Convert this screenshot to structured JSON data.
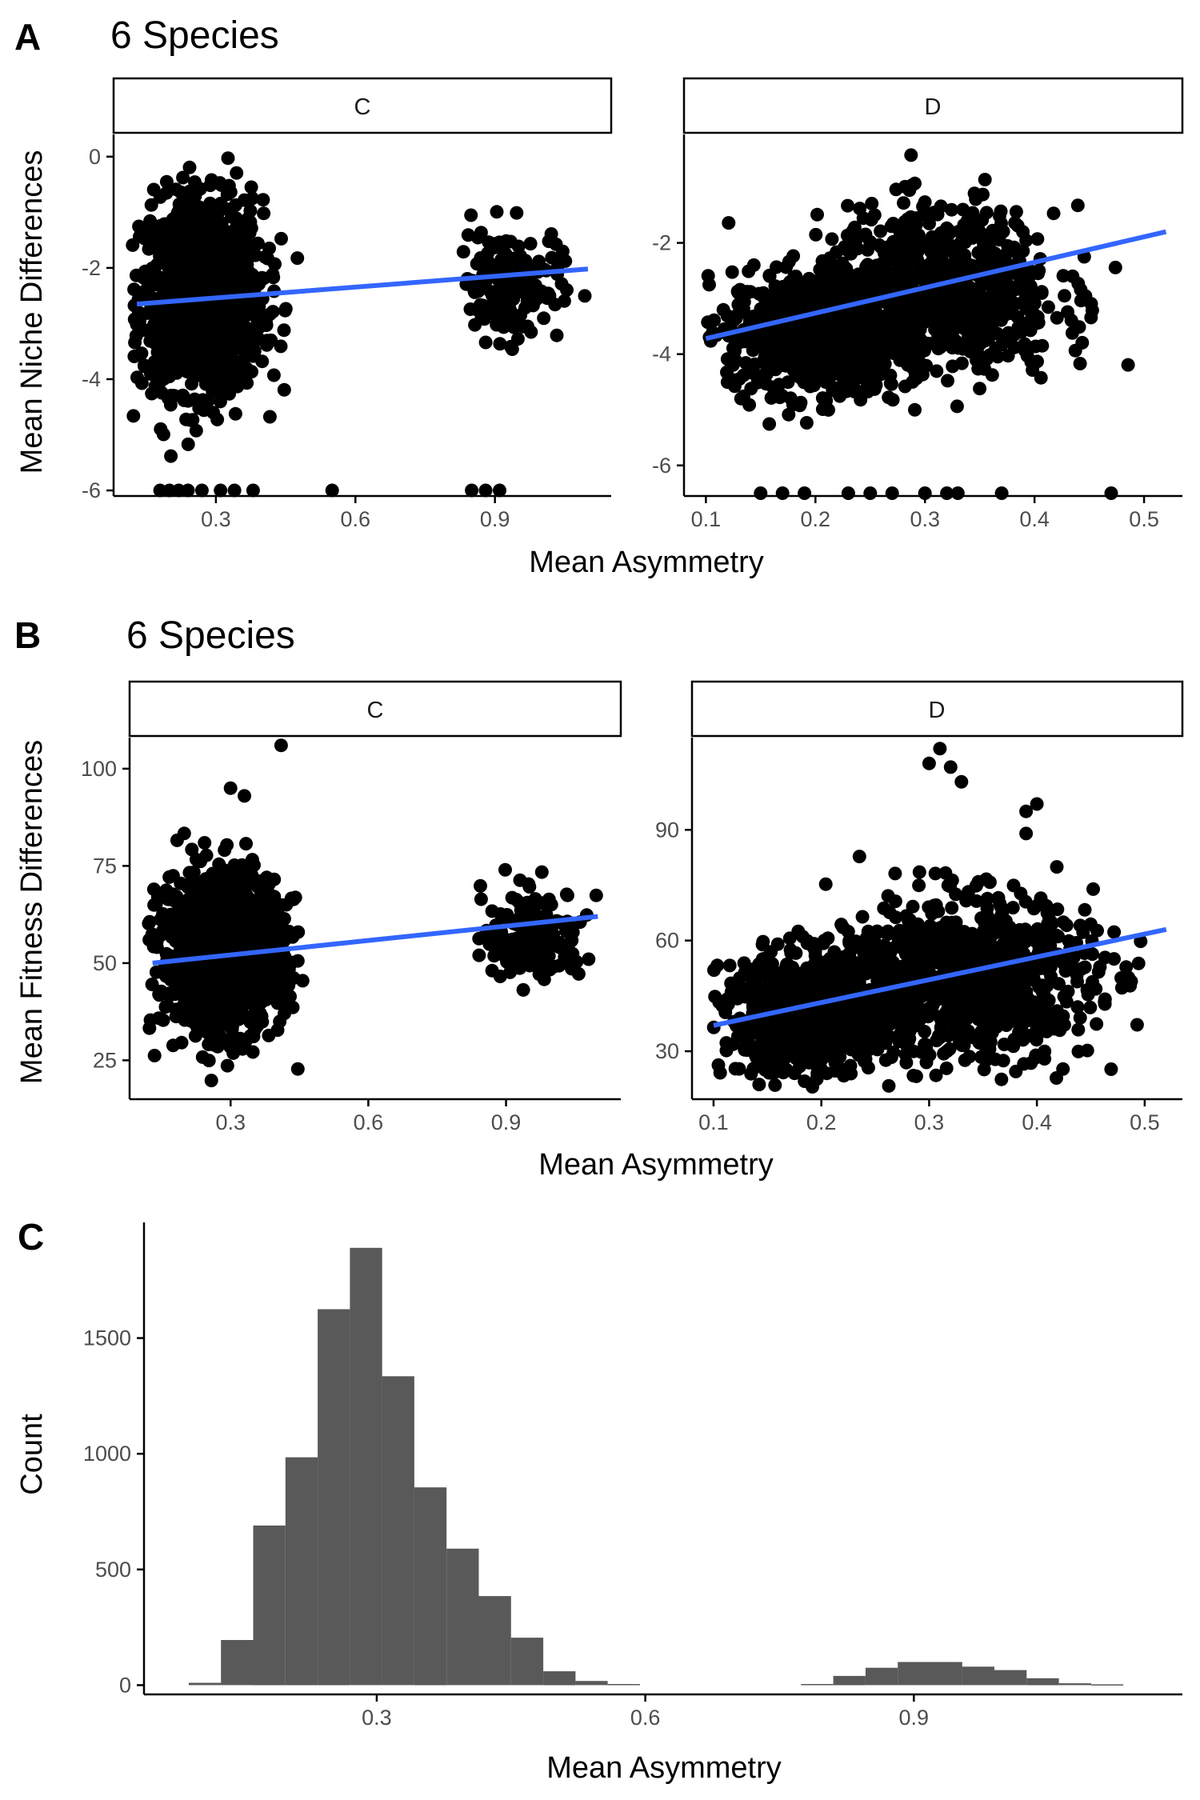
{
  "colors": {
    "point": "#000000",
    "fit_line": "#3366ff",
    "bar": "#595959",
    "axis": "#000000"
  },
  "chart_data": [
    {
      "type": "scatter",
      "panel_label": "A",
      "title": "6 Species",
      "xlabel": "Mean Asymmetry",
      "ylabel": "Mean Niche Differences",
      "facets": [
        {
          "label": "C",
          "xlim": [
            0.08,
            1.15
          ],
          "ylim": [
            -6.1,
            0.4
          ],
          "xticks": [
            0.3,
            0.6,
            0.9
          ],
          "xtick_labels": [
            "0.3",
            "0.6",
            "0.9"
          ],
          "yticks": [
            0,
            -2,
            -4,
            -6
          ],
          "ytick_labels": [
            "0",
            "-2",
            "-4",
            "-6"
          ],
          "clusters": [
            {
              "cx": 0.27,
              "cy": -2.5,
              "sx": 0.065,
              "sy": 0.85,
              "n": 1300,
              "xmin": 0.12,
              "xmax": 0.55,
              "ymin": -5.9,
              "ymax": 0.0
            },
            {
              "cx": 0.93,
              "cy": -2.3,
              "sx": 0.055,
              "sy": 0.5,
              "n": 180,
              "xmin": 0.81,
              "xmax": 1.11,
              "ymin": -4.2,
              "ymax": -0.6
            }
          ],
          "floor_x": [
            0.18,
            0.2,
            0.22,
            0.24,
            0.27,
            0.31,
            0.34,
            0.38,
            0.55,
            0.85,
            0.88,
            0.91
          ],
          "floor_y": -6.0,
          "fit": {
            "x": [
              0.13,
              1.1
            ],
            "y": [
              -2.65,
              -2.02
            ]
          }
        },
        {
          "label": "D",
          "xlim": [
            0.08,
            0.535
          ],
          "ylim": [
            -6.55,
            -0.05
          ],
          "xticks": [
            0.1,
            0.2,
            0.3,
            0.4,
            0.5
          ],
          "xtick_labels": [
            "0.1",
            "0.2",
            "0.3",
            "0.4",
            "0.5"
          ],
          "yticks": [
            -2,
            -4,
            -6
          ],
          "ytick_labels": [
            "-2",
            "-4",
            "-6"
          ],
          "clusters": [
            {
              "cx": 0.2,
              "cy": -3.6,
              "sx": 0.04,
              "sy": 0.55,
              "n": 800,
              "xmin": 0.1,
              "xmax": 0.3,
              "ymin": -6.2,
              "ymax": -1.4
            },
            {
              "cx": 0.31,
              "cy": -2.9,
              "sx": 0.055,
              "sy": 0.75,
              "n": 800,
              "xmin": 0.2,
              "xmax": 0.52,
              "ymin": -5.0,
              "ymax": -0.4
            }
          ],
          "floor_x": [
            0.15,
            0.17,
            0.19,
            0.23,
            0.25,
            0.27,
            0.3,
            0.32,
            0.33,
            0.37,
            0.47
          ],
          "floor_y": -6.5,
          "fit": {
            "x": [
              0.1,
              0.52
            ],
            "y": [
              -3.72,
              -1.8
            ]
          }
        }
      ]
    },
    {
      "type": "scatter",
      "panel_label": "B",
      "title": "6 Species",
      "xlabel": "Mean Asymmetry",
      "ylabel": "Mean Fitness Differences",
      "facets": [
        {
          "label": "C",
          "xlim": [
            0.08,
            1.15
          ],
          "ylim": [
            15,
            108
          ],
          "xticks": [
            0.3,
            0.6,
            0.9
          ],
          "xtick_labels": [
            "0.3",
            "0.6",
            "0.9"
          ],
          "yticks": [
            25,
            50,
            75,
            100
          ],
          "ytick_labels": [
            "25",
            "50",
            "75",
            "100"
          ],
          "clusters": [
            {
              "cx": 0.28,
              "cy": 53,
              "sx": 0.065,
              "sy": 10,
              "n": 1300,
              "xmin": 0.12,
              "xmax": 0.55,
              "ymin": 18,
              "ymax": 90
            },
            {
              "cx": 0.96,
              "cy": 57,
              "sx": 0.055,
              "sy": 6,
              "n": 180,
              "xmin": 0.82,
              "xmax": 1.11,
              "ymin": 37,
              "ymax": 76
            }
          ],
          "outliers_x": [
            0.41,
            0.3,
            0.33
          ],
          "outliers_y": [
            106,
            95,
            93
          ],
          "fit": {
            "x": [
              0.13,
              1.1
            ],
            "y": [
              50,
              62
            ]
          }
        },
        {
          "label": "D",
          "xlim": [
            0.08,
            0.535
          ],
          "ylim": [
            17,
            115
          ],
          "xticks": [
            0.1,
            0.2,
            0.3,
            0.4,
            0.5
          ],
          "xtick_labels": [
            "0.1",
            "0.2",
            "0.3",
            "0.4",
            "0.5"
          ],
          "yticks": [
            30,
            60,
            90
          ],
          "ytick_labels": [
            "30",
            "60",
            "90"
          ],
          "clusters": [
            {
              "cx": 0.19,
              "cy": 40,
              "sx": 0.04,
              "sy": 8,
              "n": 800,
              "xmin": 0.1,
              "xmax": 0.3,
              "ymin": 19,
              "ymax": 75
            },
            {
              "cx": 0.33,
              "cy": 50,
              "sx": 0.06,
              "sy": 11,
              "n": 900,
              "xmin": 0.2,
              "xmax": 0.52,
              "ymin": 20,
              "ymax": 90
            }
          ],
          "outliers_x": [
            0.31,
            0.3,
            0.32,
            0.33,
            0.4,
            0.39,
            0.39
          ],
          "outliers_y": [
            112,
            108,
            107,
            103,
            97,
            95,
            89
          ],
          "fit": {
            "x": [
              0.1,
              0.52
            ],
            "y": [
              37,
              63
            ]
          }
        }
      ]
    },
    {
      "type": "bar",
      "panel_label": "C",
      "title": "",
      "xlabel": "Mean Asymmetry",
      "ylabel": "Count",
      "xlim": [
        0.04,
        1.2
      ],
      "ylim": [
        -40,
        2000
      ],
      "xticks": [
        0.3,
        0.6,
        0.9
      ],
      "xtick_labels": [
        "0.3",
        "0.6",
        "0.9"
      ],
      "yticks": [
        0,
        500,
        1000,
        1500
      ],
      "ytick_labels": [
        "0",
        "500",
        "1000",
        "1500"
      ],
      "bin_width": 0.036,
      "bin_starts": [
        0.09,
        0.126,
        0.162,
        0.198,
        0.234,
        0.27,
        0.306,
        0.342,
        0.378,
        0.414,
        0.45,
        0.486,
        0.522,
        0.558,
        0.774,
        0.81,
        0.846,
        0.882,
        0.918,
        0.954,
        0.99,
        1.026,
        1.062,
        1.098
      ],
      "counts": [
        10,
        195,
        690,
        985,
        1625,
        1890,
        1335,
        855,
        590,
        385,
        205,
        60,
        18,
        5,
        5,
        40,
        75,
        100,
        100,
        80,
        65,
        30,
        8,
        3
      ]
    }
  ]
}
